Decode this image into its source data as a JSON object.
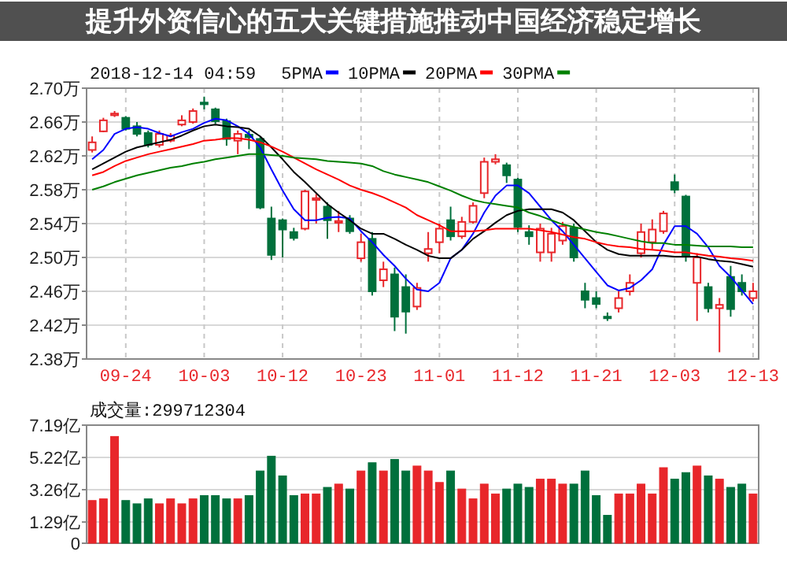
{
  "chart_data": [
    {
      "type": "candlestick",
      "title": "2018-12-14 04:59",
      "annotations": [
        "提升外资信心的五大关键措施推动中国经济稳定增长"
      ],
      "categories": [
        null,
        null,
        null,
        "09-24",
        null,
        null,
        null,
        null,
        null,
        null,
        "10-03",
        null,
        null,
        null,
        null,
        null,
        null,
        "10-12",
        null,
        null,
        null,
        null,
        null,
        null,
        "10-23",
        null,
        null,
        null,
        null,
        null,
        null,
        "11-01",
        null,
        null,
        null,
        null,
        null,
        null,
        "11-12",
        null,
        null,
        null,
        null,
        null,
        null,
        "11-21",
        null,
        null,
        null,
        null,
        null,
        null,
        "12-03",
        null,
        null,
        null,
        null,
        null,
        null,
        "12-13"
      ],
      "ohlc": [
        [
          2.627,
          2.643,
          2.624,
          2.636
        ],
        [
          2.649,
          2.665,
          2.648,
          2.662
        ],
        [
          2.668,
          2.673,
          2.666,
          2.67
        ],
        [
          2.665,
          2.667,
          2.65,
          2.652
        ],
        [
          2.655,
          2.66,
          2.643,
          2.646
        ],
        [
          2.647,
          2.65,
          2.63,
          2.633
        ],
        [
          2.633,
          2.65,
          2.63,
          2.646
        ],
        [
          2.638,
          2.647,
          2.636,
          2.644
        ],
        [
          2.657,
          2.668,
          2.655,
          2.662
        ],
        [
          2.66,
          2.676,
          2.658,
          2.673
        ],
        [
          2.683,
          2.69,
          2.675,
          2.681
        ],
        [
          2.675,
          2.677,
          2.658,
          2.661
        ],
        [
          2.661,
          2.664,
          2.632,
          2.64
        ],
        [
          2.638,
          2.65,
          2.622,
          2.646
        ],
        [
          2.645,
          2.65,
          2.628,
          2.642
        ],
        [
          2.64,
          2.642,
          2.557,
          2.559
        ],
        [
          2.546,
          2.56,
          2.497,
          2.503
        ],
        [
          2.544,
          2.546,
          2.5,
          2.533
        ],
        [
          2.53,
          2.535,
          2.52,
          2.523
        ],
        [
          2.534,
          2.58,
          2.532,
          2.578
        ],
        [
          2.568,
          2.575,
          2.54,
          2.57
        ],
        [
          2.56,
          2.565,
          2.522,
          2.544
        ],
        [
          2.541,
          2.555,
          2.53,
          2.543
        ],
        [
          2.546,
          2.55,
          2.528,
          2.531
        ],
        [
          2.499,
          2.528,
          2.495,
          2.518
        ],
        [
          2.522,
          2.53,
          2.455,
          2.46
        ],
        [
          2.473,
          2.495,
          2.465,
          2.486
        ],
        [
          2.48,
          2.488,
          2.413,
          2.43
        ],
        [
          2.465,
          2.48,
          2.41,
          2.436
        ],
        [
          2.442,
          2.47,
          2.438,
          2.464
        ],
        [
          2.505,
          2.53,
          2.495,
          2.51
        ],
        [
          2.518,
          2.54,
          2.505,
          2.534
        ],
        [
          2.544,
          2.56,
          2.52,
          2.525
        ],
        [
          2.525,
          2.548,
          2.522,
          2.542
        ],
        [
          2.542,
          2.565,
          2.54,
          2.561
        ],
        [
          2.576,
          2.618,
          2.57,
          2.613
        ],
        [
          2.613,
          2.622,
          2.61,
          2.616
        ],
        [
          2.609,
          2.612,
          2.588,
          2.597
        ],
        [
          2.592,
          2.594,
          2.53,
          2.536
        ],
        [
          2.53,
          2.538,
          2.515,
          2.525
        ],
        [
          2.506,
          2.54,
          2.495,
          2.534
        ],
        [
          2.506,
          2.535,
          2.495,
          2.528
        ],
        [
          2.52,
          2.542,
          2.515,
          2.537
        ],
        [
          2.535,
          2.54,
          2.495,
          2.5
        ],
        [
          2.46,
          2.47,
          2.44,
          2.45
        ],
        [
          2.452,
          2.46,
          2.44,
          2.445
        ],
        [
          2.43,
          2.435,
          2.425,
          2.429
        ],
        [
          2.44,
          2.46,
          2.435,
          2.452
        ],
        [
          2.46,
          2.48,
          2.455,
          2.47
        ],
        [
          2.505,
          2.54,
          2.5,
          2.53
        ],
        [
          2.518,
          2.545,
          2.51,
          2.533
        ],
        [
          2.531,
          2.555,
          2.528,
          2.552
        ],
        [
          2.589,
          2.598,
          2.576,
          2.58
        ],
        [
          2.572,
          2.574,
          2.495,
          2.501
        ],
        [
          2.47,
          2.505,
          2.425,
          2.5
        ],
        [
          2.465,
          2.47,
          2.435,
          2.44
        ],
        [
          2.44,
          2.452,
          2.388,
          2.444
        ],
        [
          2.477,
          2.49,
          2.43,
          2.439
        ],
        [
          2.47,
          2.48,
          2.455,
          2.46
        ],
        [
          2.452,
          2.47,
          2.448,
          2.46
        ]
      ],
      "colors": [
        "#e8262a",
        "#e8262a",
        "#e8262a",
        "#00703c",
        "#00703c",
        "#00703c",
        "#e8262a",
        "#e8262a",
        "#e8262a",
        "#e8262a",
        "#00703c",
        "#00703c",
        "#00703c",
        "#e8262a",
        "#00703c",
        "#00703c",
        "#00703c",
        "#00703c",
        "#00703c",
        "#e8262a",
        "#e8262a",
        "#00703c",
        "#e8262a",
        "#00703c",
        "#e8262a",
        "#00703c",
        "#e8262a",
        "#00703c",
        "#00703c",
        "#e8262a",
        "#e8262a",
        "#e8262a",
        "#00703c",
        "#e8262a",
        "#e8262a",
        "#e8262a",
        "#e8262a",
        "#00703c",
        "#00703c",
        "#00703c",
        "#e8262a",
        "#e8262a",
        "#e8262a",
        "#00703c",
        "#00703c",
        "#00703c",
        "#00703c",
        "#e8262a",
        "#e8262a",
        "#e8262a",
        "#e8262a",
        "#e8262a",
        "#00703c",
        "#00703c",
        "#e8262a",
        "#00703c",
        "#e8262a",
        "#00703c",
        "#00703c",
        "#e8262a"
      ],
      "series": [
        {
          "name": "5PMA",
          "type": "line",
          "color": "#0000ff",
          "values": [
            2.616,
            2.627,
            2.646,
            2.652,
            2.654,
            2.652,
            2.647,
            2.643,
            2.648,
            2.652,
            2.659,
            2.664,
            2.662,
            2.655,
            2.646,
            2.63,
            2.604,
            2.579,
            2.557,
            2.544,
            2.544,
            2.547,
            2.548,
            2.546,
            2.531,
            2.518,
            2.503,
            2.49,
            2.475,
            2.462,
            2.46,
            2.47,
            2.499,
            2.509,
            2.528,
            2.553,
            2.573,
            2.585,
            2.585,
            2.576,
            2.56,
            2.544,
            2.531,
            2.515,
            2.499,
            2.483,
            2.467,
            2.461,
            2.464,
            2.473,
            2.486,
            2.515,
            2.537,
            2.537,
            2.528,
            2.512,
            2.49,
            2.477,
            2.461,
            2.445
          ]
        },
        {
          "name": "10PMA",
          "type": "line",
          "color": "#000000",
          "values": [
            2.604,
            2.611,
            2.618,
            2.625,
            2.63,
            2.633,
            2.636,
            2.639,
            2.644,
            2.65,
            2.655,
            2.657,
            2.655,
            2.654,
            2.652,
            2.643,
            2.63,
            2.616,
            2.601,
            2.589,
            2.576,
            2.563,
            2.553,
            2.544,
            2.534,
            2.528,
            2.528,
            2.522,
            2.515,
            2.509,
            2.502,
            2.499,
            2.499,
            2.509,
            2.522,
            2.531,
            2.541,
            2.55,
            2.555,
            2.557,
            2.557,
            2.557,
            2.553,
            2.544,
            2.531,
            2.518,
            2.509,
            2.504,
            2.502,
            2.502,
            2.502,
            2.502,
            2.501,
            2.501,
            2.501,
            2.498,
            2.496,
            2.495,
            2.492,
            2.489
          ]
        },
        {
          "name": "20PMA",
          "type": "line",
          "color": "#ff0000",
          "values": [
            2.597,
            2.601,
            2.608,
            2.614,
            2.618,
            2.622,
            2.625,
            2.628,
            2.631,
            2.634,
            2.638,
            2.639,
            2.641,
            2.641,
            2.639,
            2.636,
            2.631,
            2.625,
            2.618,
            2.611,
            2.604,
            2.598,
            2.592,
            2.585,
            2.58,
            2.576,
            2.571,
            2.565,
            2.559,
            2.55,
            2.544,
            2.538,
            2.531,
            2.531,
            2.531,
            2.532,
            2.534,
            2.534,
            2.534,
            2.534,
            2.532,
            2.53,
            2.527,
            2.524,
            2.522,
            2.518,
            2.515,
            2.513,
            2.512,
            2.51,
            2.509,
            2.508,
            2.506,
            2.506,
            2.504,
            2.502,
            2.501,
            2.499,
            2.498,
            2.496
          ]
        },
        {
          "name": "30PMA",
          "type": "line",
          "color": "#008000",
          "values": [
            2.58,
            2.584,
            2.589,
            2.593,
            2.597,
            2.6,
            2.603,
            2.606,
            2.608,
            2.611,
            2.613,
            2.616,
            2.618,
            2.62,
            2.622,
            2.622,
            2.621,
            2.62,
            2.618,
            2.617,
            2.616,
            2.614,
            2.613,
            2.612,
            2.611,
            2.608,
            2.602,
            2.598,
            2.595,
            2.592,
            2.589,
            2.584,
            2.579,
            2.573,
            2.568,
            2.565,
            2.563,
            2.561,
            2.559,
            2.553,
            2.549,
            2.544,
            2.539,
            2.536,
            2.533,
            2.53,
            2.528,
            2.525,
            2.522,
            2.519,
            2.517,
            2.517,
            2.515,
            2.515,
            2.514,
            2.513,
            2.513,
            2.513,
            2.512,
            2.512
          ]
        }
      ],
      "ylim": [
        2.38,
        2.7
      ],
      "yticks": [
        {
          "value": 2.38,
          "label": "2.38万"
        },
        {
          "value": 2.42,
          "label": "2.42万"
        },
        {
          "value": 2.46,
          "label": "2.46万"
        },
        {
          "value": 2.5,
          "label": "2.50万"
        },
        {
          "value": 2.54,
          "label": "2.54万"
        },
        {
          "value": 2.58,
          "label": "2.58万"
        },
        {
          "value": 2.62,
          "label": "2.62万"
        },
        {
          "value": 2.66,
          "label": "2.66万"
        },
        {
          "value": 2.7,
          "label": "2.70万"
        }
      ],
      "grid": true,
      "legend": "top"
    },
    {
      "type": "bar",
      "title": "成交量:299712304",
      "tick_labels": "y",
      "grid": true,
      "categories": [
        null,
        null,
        null,
        null,
        null,
        null,
        null,
        null,
        null,
        null,
        null,
        null,
        null,
        null,
        null,
        null,
        null,
        null,
        null,
        null,
        null,
        null,
        null,
        null,
        null,
        null,
        null,
        null,
        null,
        null,
        null,
        null,
        null,
        null,
        null,
        null,
        null,
        null,
        null,
        null,
        null,
        null,
        null,
        null,
        null,
        null,
        null,
        null,
        null,
        null,
        null,
        null,
        null,
        null,
        null,
        null,
        null,
        null,
        null,
        null
      ],
      "values": [
        2.6,
        2.7,
        6.5,
        2.6,
        2.4,
        2.7,
        2.4,
        2.7,
        2.4,
        2.7,
        2.9,
        2.9,
        2.7,
        2.7,
        2.9,
        4.4,
        5.3,
        4.1,
        2.9,
        3.0,
        3.0,
        3.4,
        3.6,
        3.3,
        4.4,
        4.9,
        4.4,
        5.1,
        4.4,
        4.7,
        4.4,
        3.7,
        4.4,
        3.3,
        2.7,
        3.6,
        3.0,
        3.3,
        3.6,
        3.4,
        3.9,
        3.9,
        3.6,
        3.6,
        4.4,
        2.9,
        1.7,
        3.0,
        3.0,
        3.6,
        3.0,
        4.6,
        3.9,
        4.3,
        4.7,
        4.1,
        3.9,
        3.4,
        3.6,
        3.0
      ],
      "colors": [
        "#e8262a",
        "#e8262a",
        "#e8262a",
        "#00703c",
        "#00703c",
        "#00703c",
        "#e8262a",
        "#e8262a",
        "#e8262a",
        "#e8262a",
        "#00703c",
        "#00703c",
        "#00703c",
        "#e8262a",
        "#00703c",
        "#00703c",
        "#00703c",
        "#00703c",
        "#00703c",
        "#e8262a",
        "#e8262a",
        "#00703c",
        "#e8262a",
        "#00703c",
        "#e8262a",
        "#00703c",
        "#e8262a",
        "#00703c",
        "#00703c",
        "#e8262a",
        "#e8262a",
        "#e8262a",
        "#00703c",
        "#e8262a",
        "#e8262a",
        "#e8262a",
        "#e8262a",
        "#00703c",
        "#00703c",
        "#00703c",
        "#e8262a",
        "#e8262a",
        "#e8262a",
        "#00703c",
        "#00703c",
        "#00703c",
        "#00703c",
        "#e8262a",
        "#e8262a",
        "#e8262a",
        "#e8262a",
        "#e8262a",
        "#00703c",
        "#00703c",
        "#e8262a",
        "#00703c",
        "#e8262a",
        "#00703c",
        "#00703c",
        "#e8262a"
      ],
      "ylim": [
        0,
        7.19
      ],
      "yticks": [
        0,
        {
          "value": 1.29,
          "label": "1.29亿"
        },
        {
          "value": 3.26,
          "label": "3.26亿"
        },
        {
          "value": 5.22,
          "label": "5.22亿"
        },
        {
          "value": 7.19,
          "label": "7.19亿"
        }
      ]
    }
  ]
}
